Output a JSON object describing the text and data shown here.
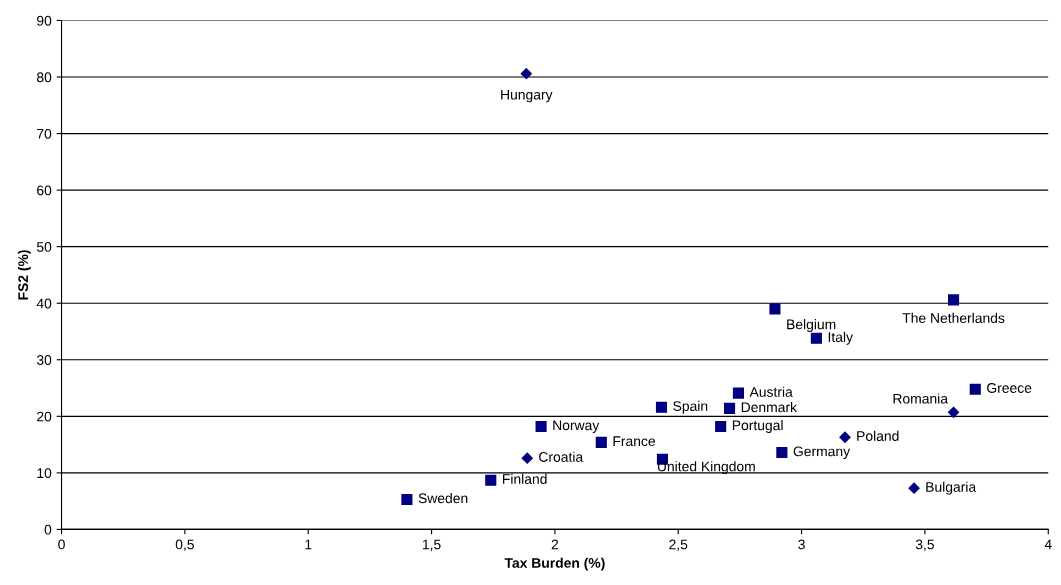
{
  "chart_data": {
    "type": "scatter",
    "xlabel": "Tax Burden (%)",
    "ylabel": "FS2 (%)",
    "series": [
      {
        "color": "#000080",
        "marker": "square",
        "x": [
          2.892,
          3.616,
          3.06,
          2.744,
          3.704,
          2.432,
          2.708,
          1.944,
          2.672,
          2.188,
          2.92,
          2.436,
          1.74,
          1.4
        ],
        "values": [
          39.0,
          40.6,
          33.8,
          24.1,
          24.8,
          21.6,
          21.4,
          18.2,
          18.2,
          15.4,
          13.6,
          12.4,
          8.7,
          5.3
        ]
      },
      {
        "color": "#000080",
        "marker": "diamond",
        "x": [
          1.884,
          3.616,
          3.176,
          1.888,
          3.456
        ],
        "values": [
          80.6,
          20.7,
          16.3,
          12.6,
          7.3
        ]
      }
    ],
    "annotations": [
      {
        "text": "Belgium",
        "x": 2.892,
        "y": 39.0
      },
      {
        "text": "The Netherlands",
        "x": 3.616,
        "y": 40.6
      },
      {
        "text": "Italy",
        "x": 3.06,
        "y": 33.8
      },
      {
        "text": "Austria",
        "x": 2.744,
        "y": 24.1
      },
      {
        "text": "Greece",
        "x": 3.704,
        "y": 24.8
      },
      {
        "text": "Spain",
        "x": 2.432,
        "y": 21.6
      },
      {
        "text": "Denmark",
        "x": 2.708,
        "y": 21.4
      },
      {
        "text": "Norway",
        "x": 1.944,
        "y": 18.2
      },
      {
        "text": "Portugal",
        "x": 2.672,
        "y": 18.2
      },
      {
        "text": "France",
        "x": 2.188,
        "y": 15.4
      },
      {
        "text": "Germany",
        "x": 2.92,
        "y": 13.6
      },
      {
        "text": "United Kingdom",
        "x": 2.436,
        "y": 12.4
      },
      {
        "text": "Finland",
        "x": 1.74,
        "y": 8.7
      },
      {
        "text": "Sweden",
        "x": 1.4,
        "y": 5.3
      },
      {
        "text": "Hungary",
        "x": 1.884,
        "y": 80.6
      },
      {
        "text": "Romania",
        "x": 3.616,
        "y": 20.7
      },
      {
        "text": "Poland",
        "x": 3.176,
        "y": 16.3
      },
      {
        "text": "Croatia",
        "x": 1.888,
        "y": 12.6
      },
      {
        "text": "Bulgaria",
        "x": 3.456,
        "y": 7.3
      }
    ],
    "xlim": [
      0,
      4
    ],
    "ylim": [
      0,
      90
    ],
    "xticks": [
      0,
      {
        "value": 0.5,
        "label": "0,5"
      },
      1,
      {
        "value": 1.5,
        "label": "1,5"
      },
      2,
      {
        "value": 2.5,
        "label": "2,5"
      },
      3,
      {
        "value": 3.5,
        "label": "3,5"
      },
      4
    ],
    "yticks": [
      0,
      10,
      20,
      30,
      40,
      50,
      60,
      70,
      80,
      90
    ],
    "grid": "y"
  }
}
